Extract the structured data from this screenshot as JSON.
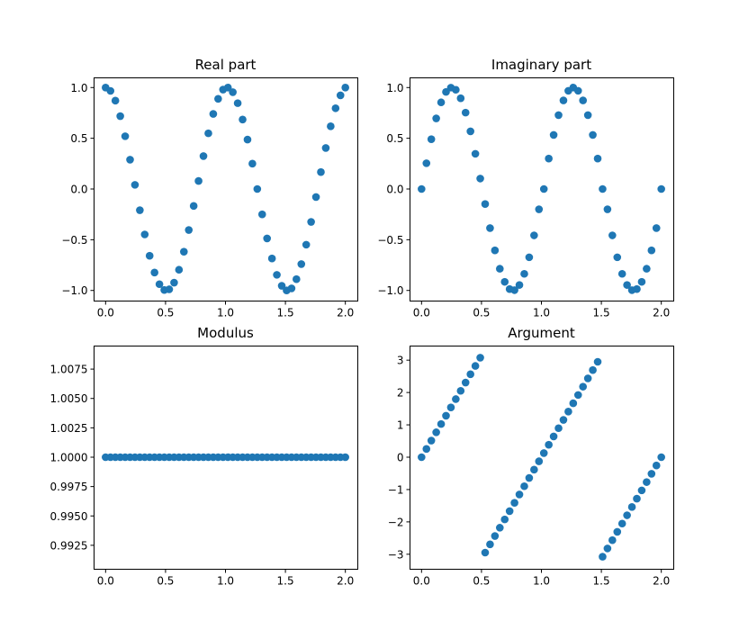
{
  "chart_data": [
    {
      "type": "scatter",
      "title": "Real part",
      "func": "real",
      "xlim": [
        -0.1,
        2.1
      ],
      "ylim": [
        -1.1,
        1.1
      ],
      "xticks": [
        0.0,
        0.5,
        1.0,
        1.5,
        2.0
      ],
      "xtick_labels": [
        "0.0",
        "0.5",
        "1.0",
        "1.5",
        "2.0"
      ],
      "yticks": [
        -1.0,
        -0.5,
        0.0,
        0.5,
        1.0
      ],
      "ytick_labels": [
        "−1.0",
        "−0.5",
        "0.0",
        "0.5",
        "1.0"
      ],
      "grid": false,
      "color": "#1f77b4",
      "x": [
        0.0,
        0.0408,
        0.0816,
        0.1224,
        0.1633,
        0.2041,
        0.2449,
        0.2857,
        0.3265,
        0.3673,
        0.4082,
        0.449,
        0.4898,
        0.5306,
        0.5714,
        0.6122,
        0.6531,
        0.6939,
        0.7347,
        0.7755,
        0.8163,
        0.8571,
        0.898,
        0.9388,
        0.9796,
        1.0204,
        1.0612,
        1.102,
        1.1429,
        1.1837,
        1.2245,
        1.2653,
        1.3061,
        1.3469,
        1.3878,
        1.4286,
        1.4694,
        1.5102,
        1.551,
        1.5918,
        1.6327,
        1.6735,
        1.7143,
        1.7551,
        1.7959,
        1.8367,
        1.8776,
        1.9184,
        1.9592,
        2.0
      ],
      "y": [
        1.0,
        0.967,
        0.871,
        0.718,
        0.52,
        0.289,
        0.041,
        -0.209,
        -0.448,
        -0.658,
        -0.823,
        -0.938,
        -0.995,
        -0.989,
        -0.923,
        -0.796,
        -0.618,
        -0.404,
        -0.167,
        0.079,
        0.324,
        0.549,
        0.74,
        0.889,
        0.98,
        1.0,
        0.954,
        0.846,
        0.685,
        0.487,
        0.25,
        0.0,
        -0.25,
        -0.487,
        -0.685,
        -0.846,
        -0.954,
        -1.0,
        -0.98,
        -0.889,
        -0.74,
        -0.549,
        -0.324,
        -0.079,
        0.167,
        0.404,
        0.618,
        0.796,
        0.923,
        1.0
      ]
    },
    {
      "type": "scatter",
      "title": "Imaginary part",
      "func": "imag",
      "xlim": [
        -0.1,
        2.1
      ],
      "ylim": [
        -1.1,
        1.1
      ],
      "xticks": [
        0.0,
        0.5,
        1.0,
        1.5,
        2.0
      ],
      "xtick_labels": [
        "0.0",
        "0.5",
        "1.0",
        "1.5",
        "2.0"
      ],
      "yticks": [
        -1.0,
        -0.5,
        0.0,
        0.5,
        1.0
      ],
      "ytick_labels": [
        "−1.0",
        "−0.5",
        "0.0",
        "0.5",
        "1.0"
      ],
      "grid": false,
      "color": "#1f77b4",
      "x": [
        0.0,
        0.0408,
        0.0816,
        0.1224,
        0.1633,
        0.2041,
        0.2449,
        0.2857,
        0.3265,
        0.3673,
        0.4082,
        0.449,
        0.4898,
        0.5306,
        0.5714,
        0.6122,
        0.6531,
        0.6939,
        0.7347,
        0.7755,
        0.8163,
        0.8571,
        0.898,
        0.9388,
        0.9796,
        1.0204,
        1.0612,
        1.102,
        1.1429,
        1.1837,
        1.2245,
        1.2653,
        1.3061,
        1.3469,
        1.3878,
        1.4286,
        1.4694,
        1.5102,
        1.551,
        1.5918,
        1.6327,
        1.6735,
        1.7143,
        1.7551,
        1.7959,
        1.8367,
        1.8776,
        1.9184,
        1.9592,
        2.0
      ],
      "y": [
        0.0,
        0.254,
        0.491,
        0.696,
        0.854,
        0.957,
        0.999,
        0.978,
        0.894,
        0.753,
        0.568,
        0.347,
        0.103,
        -0.148,
        -0.385,
        -0.605,
        -0.786,
        -0.915,
        -0.986,
        -0.997,
        -0.946,
        -0.836,
        -0.673,
        -0.457,
        -0.2,
        0.0,
        0.3,
        0.533,
        0.728,
        0.873,
        0.968,
        1.0,
        0.968,
        0.873,
        0.728,
        0.533,
        0.3,
        0.0,
        -0.2,
        -0.457,
        -0.673,
        -0.836,
        -0.946,
        -0.997,
        -0.986,
        -0.915,
        -0.786,
        -0.605,
        -0.385,
        0.0
      ]
    },
    {
      "type": "scatter",
      "title": "Modulus",
      "func": "abs",
      "xlim": [
        -0.1,
        2.1
      ],
      "ylim": [
        0.9905,
        1.0095
      ],
      "xticks": [
        0.0,
        0.5,
        1.0,
        1.5,
        2.0
      ],
      "xtick_labels": [
        "0.0",
        "0.5",
        "1.0",
        "1.5",
        "2.0"
      ],
      "yticks": [
        0.9925,
        0.995,
        0.9975,
        1.0,
        1.0025,
        1.005,
        1.0075
      ],
      "ytick_labels": [
        "0.9925",
        "0.9950",
        "0.9975",
        "1.0000",
        "1.0025",
        "1.0050",
        "1.0075"
      ],
      "grid": false,
      "color": "#1f77b4",
      "x": [
        0.0,
        0.0408,
        0.0816,
        0.1224,
        0.1633,
        0.2041,
        0.2449,
        0.2857,
        0.3265,
        0.3673,
        0.4082,
        0.449,
        0.4898,
        0.5306,
        0.5714,
        0.6122,
        0.6531,
        0.6939,
        0.7347,
        0.7755,
        0.8163,
        0.8571,
        0.898,
        0.9388,
        0.9796,
        1.0204,
        1.0612,
        1.102,
        1.1429,
        1.1837,
        1.2245,
        1.2653,
        1.3061,
        1.3469,
        1.3878,
        1.4286,
        1.4694,
        1.5102,
        1.551,
        1.5918,
        1.6327,
        1.6735,
        1.7143,
        1.7551,
        1.7959,
        1.8367,
        1.8776,
        1.9184,
        1.9592,
        2.0
      ],
      "y": [
        1.0,
        1.0,
        1.0,
        1.0,
        1.0,
        1.0,
        1.0,
        1.0,
        1.0,
        1.0,
        1.0,
        1.0,
        1.0,
        1.0,
        1.0,
        1.0,
        1.0,
        1.0,
        1.0,
        1.0,
        1.0,
        1.0,
        1.0,
        1.0,
        1.0,
        1.0,
        1.0,
        1.0,
        1.0,
        1.0,
        1.0,
        1.0,
        1.0,
        1.0,
        1.0,
        1.0,
        1.0,
        1.0,
        1.0,
        1.0,
        1.0,
        1.0,
        1.0,
        1.0,
        1.0,
        1.0,
        1.0,
        1.0,
        1.0,
        1.0
      ]
    },
    {
      "type": "scatter",
      "title": "Argument",
      "func": "angle",
      "xlim": [
        -0.1,
        2.1
      ],
      "ylim": [
        -3.45,
        3.45
      ],
      "xticks": [
        0.0,
        0.5,
        1.0,
        1.5,
        2.0
      ],
      "xtick_labels": [
        "0.0",
        "0.5",
        "1.0",
        "1.5",
        "2.0"
      ],
      "yticks": [
        -3,
        -2,
        -1,
        0,
        1,
        2,
        3
      ],
      "ytick_labels": [
        "−3",
        "−2",
        "−1",
        "0",
        "1",
        "2",
        "3"
      ],
      "grid": false,
      "color": "#1f77b4",
      "x": [
        0.0,
        0.0408,
        0.0816,
        0.1224,
        0.1633,
        0.2041,
        0.2449,
        0.2857,
        0.3265,
        0.3673,
        0.4082,
        0.449,
        0.4898,
        0.5306,
        0.5714,
        0.6122,
        0.6531,
        0.6939,
        0.7347,
        0.7755,
        0.8163,
        0.8571,
        0.898,
        0.9388,
        0.9796,
        1.0204,
        1.0612,
        1.102,
        1.1429,
        1.1837,
        1.2245,
        1.2653,
        1.3061,
        1.3469,
        1.3878,
        1.4286,
        1.4694,
        1.5102,
        1.551,
        1.5918,
        1.6327,
        1.6735,
        1.7143,
        1.7551,
        1.7959,
        1.8367,
        1.8776,
        1.9184,
        1.9592,
        2.0
      ],
      "y": [
        0.0,
        0.256,
        0.513,
        0.769,
        1.026,
        1.282,
        1.539,
        1.795,
        2.052,
        2.308,
        2.565,
        2.821,
        3.077,
        -2.949,
        -2.693,
        -2.436,
        -2.18,
        -1.923,
        -1.667,
        -1.41,
        -1.154,
        -0.897,
        -0.641,
        -0.385,
        -0.128,
        0.128,
        0.385,
        0.641,
        0.897,
        1.154,
        1.41,
        1.667,
        1.923,
        2.18,
        2.436,
        2.693,
        2.949,
        -3.077,
        -2.821,
        -2.565,
        -2.308,
        -2.052,
        -1.795,
        -1.539,
        -1.282,
        -1.026,
        -0.769,
        -0.513,
        -0.256,
        0.0
      ]
    }
  ]
}
